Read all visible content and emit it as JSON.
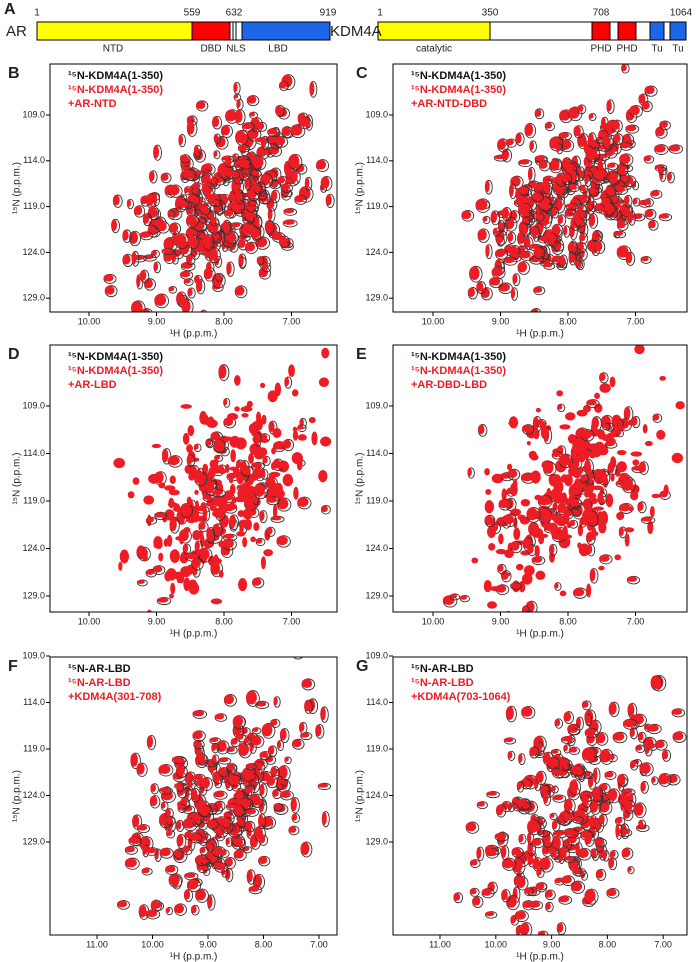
{
  "panel_a": {
    "label": "A",
    "ar": {
      "name": "AR",
      "positions": [
        "1",
        "559",
        "632",
        "919"
      ],
      "domains": [
        "NTD",
        "DBD",
        "NLS",
        "LBD"
      ]
    },
    "kdm4a": {
      "name": "KDM4A",
      "positions": [
        "1",
        "350",
        "708",
        "1064"
      ],
      "domains": [
        "catalytic",
        "PHD",
        "PHD",
        "Tu",
        "Tu"
      ]
    }
  },
  "panels": [
    {
      "label": "B",
      "legend": [
        "¹⁵N-KDM4A(1-350)",
        "¹⁵N-KDM4A(1-350)",
        "+AR-NTD"
      ],
      "x_ticks": [
        "10.00",
        "9.00",
        "8.00",
        "7.00"
      ],
      "y_ticks": [
        "109.0",
        "114.0",
        "119.0",
        "124.0",
        "129.0"
      ],
      "x_label": "¹H (p.p.m.)",
      "y_label": "¹⁵N (p.p.m.)"
    },
    {
      "label": "C",
      "legend": [
        "¹⁵N-KDM4A(1-350)",
        "¹⁵N-KDM4A(1-350)",
        "+AR-NTD-DBD"
      ],
      "x_ticks": [
        "10.00",
        "9.00",
        "8.00",
        "7.00"
      ],
      "y_ticks": [
        "109.0",
        "114.0",
        "119.0",
        "124.0",
        "129.0"
      ],
      "x_label": "¹H (p.p.m.)",
      "y_label": "¹⁵N (p.p.m.)"
    },
    {
      "label": "D",
      "legend": [
        "¹⁵N-KDM4A(1-350)",
        "¹⁵N-KDM4A(1-350)",
        "+AR-LBD"
      ],
      "x_ticks": [
        "10.00",
        "9.00",
        "8.00",
        "7.00"
      ],
      "y_ticks": [
        "109.0",
        "114.0",
        "119.0",
        "124.0",
        "129.0"
      ],
      "x_label": "¹H (p.p.m.)",
      "y_label": "¹⁵N (p.p.m.)"
    },
    {
      "label": "E",
      "legend": [
        "¹⁵N-KDM4A(1-350)",
        "¹⁵N-KDM4A(1-350)",
        "+AR-DBD-LBD"
      ],
      "x_ticks": [
        "10.00",
        "9.00",
        "8.00",
        "7.00"
      ],
      "y_ticks": [
        "109.0",
        "114.0",
        "119.0",
        "124.0",
        "129.0"
      ],
      "x_label": "¹H (p.p.m.)",
      "y_label": "¹⁵N (p.p.m.)"
    },
    {
      "label": "F",
      "legend": [
        "¹⁵N-AR-LBD",
        "¹⁵N-AR-LBD",
        "+KDM4A(301-708)"
      ],
      "x_ticks": [
        "11.00",
        "10.00",
        "9.00",
        "8.00",
        "7.00"
      ],
      "y_ticks": [
        "109.0",
        "114.0",
        "119.0",
        "124.0",
        "129.0"
      ],
      "x_label": "¹H (p.p.m.)",
      "y_label": "¹⁵N (p.p.m.)"
    },
    {
      "label": "G",
      "legend": [
        "¹⁵N-AR-LBD",
        "¹⁵N-AR-LBD",
        "+KDM4A(703-1064)"
      ],
      "x_ticks": [
        "11.00",
        "10.00",
        "9.00",
        "8.00",
        "7.00"
      ],
      "y_ticks": [
        "109.0",
        "114.0",
        "119.0",
        "124.0",
        "129.0"
      ],
      "x_label": "¹H (p.p.m.)",
      "y_label": "¹⁵N (p.p.m.)"
    }
  ]
}
